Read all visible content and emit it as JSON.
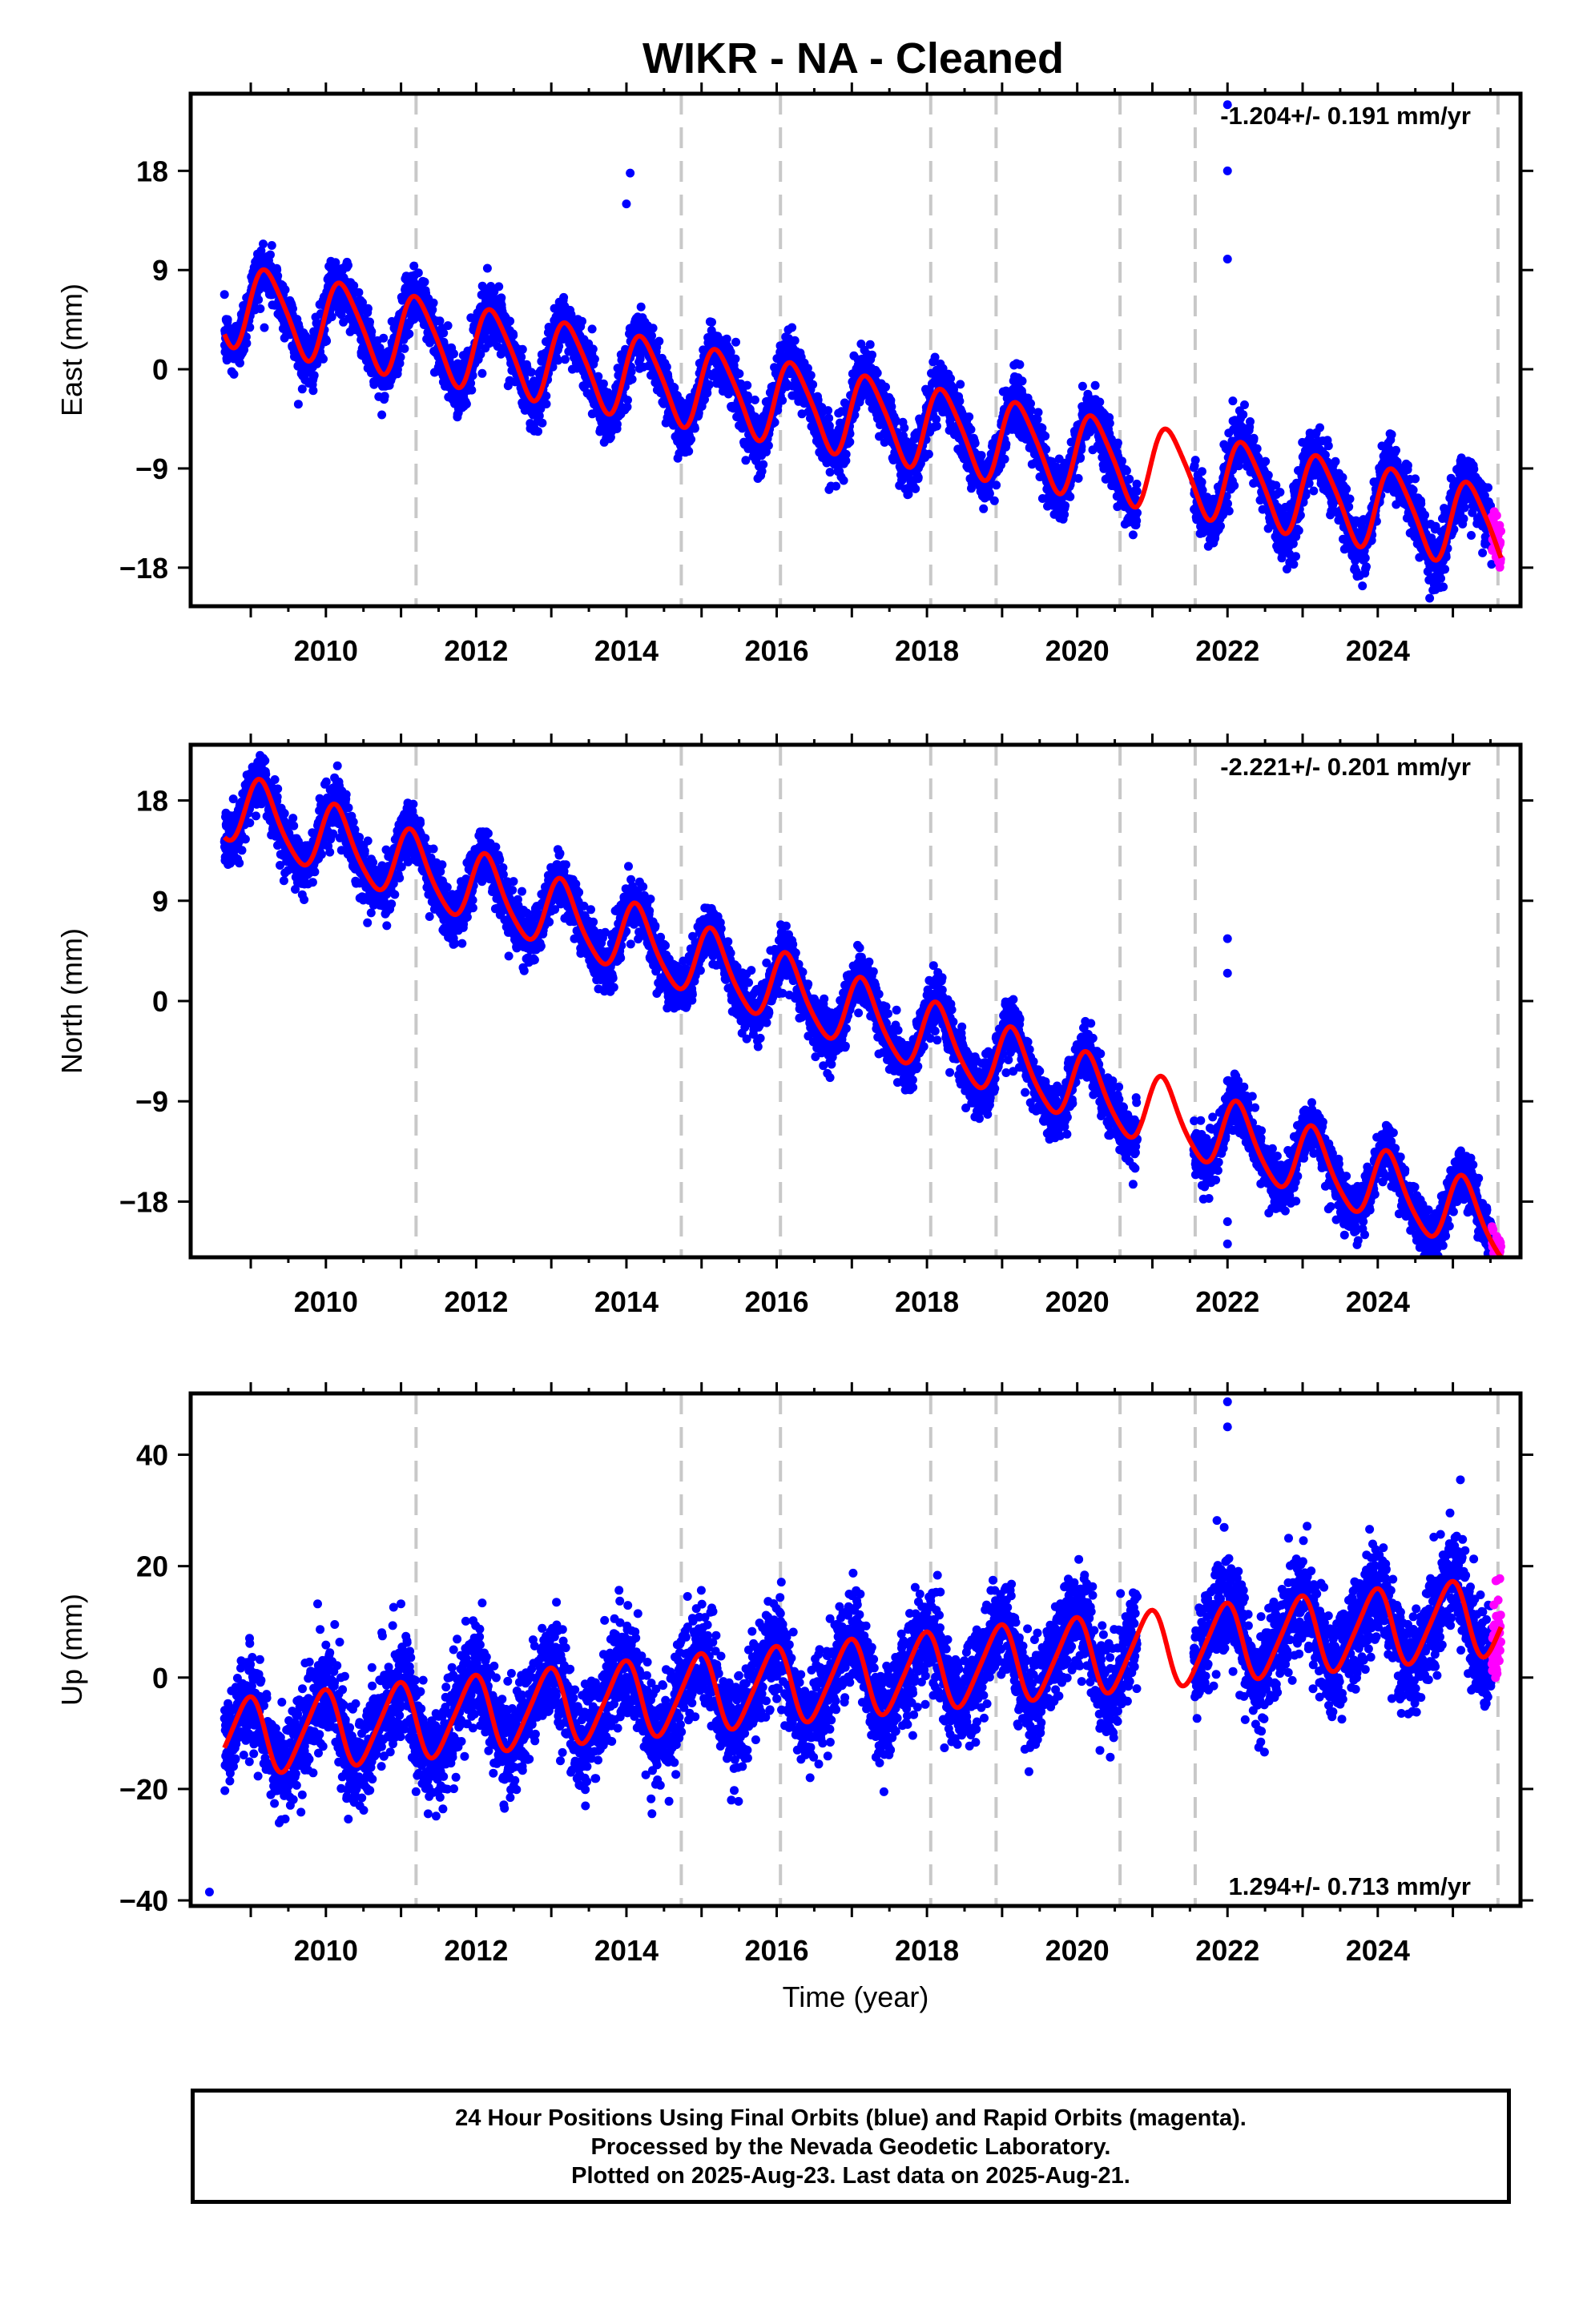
{
  "title": "WIKR  - NA - Cleaned",
  "colors": {
    "final": "#0000ff",
    "rapid": "#ff00ff",
    "model": "#ff0000",
    "breaks": "#c8c8c8"
  },
  "xlabel": "Time (year)",
  "footer": {
    "line1": "24 Hour Positions Using Final Orbits (blue) and Rapid Orbits (magenta).",
    "line2": "Processed by the Nevada Geodetic Laboratory.",
    "line3": "Plotted on 2025-Aug-23. Last data on 2025-Aug-21."
  },
  "chart_data": [
    {
      "type": "scatter",
      "component": "east",
      "ylabel": "East (mm)",
      "rate_text": "-1.204+/- 0.191 mm/yr",
      "xlim": [
        2008.2,
        2025.9
      ],
      "ylim": [
        -21.5,
        25
      ],
      "yticks": [
        -18,
        -9,
        0,
        9,
        18
      ],
      "xticks": [
        2010,
        2012,
        2014,
        2016,
        2018,
        2020,
        2022,
        2024
      ],
      "breaks": [
        2011.2,
        2014.73,
        2016.05,
        2018.05,
        2018.92,
        2020.57,
        2021.57,
        2025.6
      ],
      "model": {
        "t0": 2008.65,
        "intercept": 6.0,
        "rate": -1.204,
        "annual_sin": 3.6,
        "annual_cos": 0.5,
        "semi_sin": 0.5,
        "semi_cos": 0.3
      },
      "noise_sd": 1.3,
      "spikes": [
        [
          2014.05,
          17.8
        ],
        [
          2014.0,
          15.0
        ],
        [
          2022.0,
          24.0
        ],
        [
          2022.0,
          18.0
        ],
        [
          2022.0,
          10.0
        ]
      ]
    },
    {
      "type": "scatter",
      "component": "north",
      "ylabel": "North (mm)",
      "rate_text": "-2.221+/- 0.201 mm/yr",
      "xlim": [
        2008.2,
        2025.9
      ],
      "ylim": [
        -23,
        23
      ],
      "yticks": [
        -18,
        -9,
        0,
        9,
        18
      ],
      "xticks": [
        2010,
        2012,
        2014,
        2016,
        2018,
        2020,
        2022,
        2024
      ],
      "breaks": [
        2011.2,
        2014.73,
        2016.05,
        2018.05,
        2018.92,
        2020.57,
        2021.57,
        2025.6
      ],
      "model": {
        "t0": 2008.65,
        "intercept": 17.5,
        "rate": -2.221,
        "annual_sin": 2.5,
        "annual_cos": 1.8,
        "semi_sin": 0.4,
        "semi_cos": 0.3
      },
      "noise_sd": 1.2,
      "spikes": [
        [
          2022.0,
          5.6
        ],
        [
          2022.0,
          2.5
        ],
        [
          2022.0,
          -19.8
        ],
        [
          2022.0,
          -21.8
        ]
      ]
    },
    {
      "type": "scatter",
      "component": "up",
      "ylabel": "Up (mm)",
      "rate_text": "1.294+/- 0.713 mm/yr",
      "xlim": [
        2008.2,
        2025.9
      ],
      "ylim": [
        -41,
        51
      ],
      "yticks": [
        -40,
        -20,
        0,
        20,
        40
      ],
      "xticks": [
        2010,
        2012,
        2014,
        2016,
        2018,
        2020,
        2022,
        2024
      ],
      "breaks": [
        2011.2,
        2014.73,
        2016.05,
        2018.05,
        2018.92,
        2020.57,
        2021.57,
        2025.6
      ],
      "model": {
        "t0": 2008.65,
        "intercept": -11.0,
        "rate": 1.294,
        "annual_sin": -2.0,
        "annual_cos": 6.5,
        "semi_sin": 0.8,
        "semi_cos": 0.6
      },
      "noise_sd": 4.5,
      "spikes": [
        [
          2022.0,
          49.5
        ],
        [
          2022.0,
          45.0
        ],
        [
          2025.1,
          35.5
        ],
        [
          2008.45,
          -38.5
        ]
      ]
    }
  ]
}
